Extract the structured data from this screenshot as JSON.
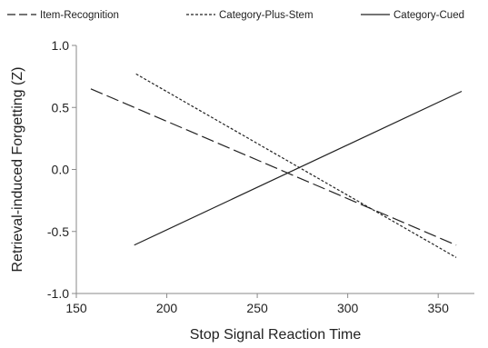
{
  "chart_data": {
    "type": "line",
    "title": "",
    "xlabel": "Stop Signal Reaction Time",
    "ylabel": "Retrieval-induced Forgetting (Z)",
    "xlim": [
      150,
      370
    ],
    "ylim": [
      -1.0,
      1.0
    ],
    "xticks": [
      150,
      200,
      250,
      300,
      350
    ],
    "yticks": [
      -1.0,
      -0.5,
      0.0,
      0.5,
      1.0
    ],
    "xtick_labels": [
      "150",
      "200",
      "250",
      "300",
      "350"
    ],
    "ytick_labels": [
      "-1.0",
      "-0.5",
      "0.0",
      "0.5",
      "1.0"
    ],
    "grid": false,
    "legend_position": "top",
    "series": [
      {
        "name": "Item-Recognition",
        "style": "dashed",
        "color": "#222222",
        "x": [
          158,
          360
        ],
        "y": [
          0.65,
          -0.61
        ]
      },
      {
        "name": "Category-Plus-Stem",
        "style": "dotted",
        "color": "#222222",
        "x": [
          183,
          360
        ],
        "y": [
          0.77,
          -0.71
        ]
      },
      {
        "name": "Category-Cued",
        "style": "solid",
        "color": "#222222",
        "x": [
          182,
          363
        ],
        "y": [
          -0.61,
          0.63
        ]
      }
    ]
  }
}
